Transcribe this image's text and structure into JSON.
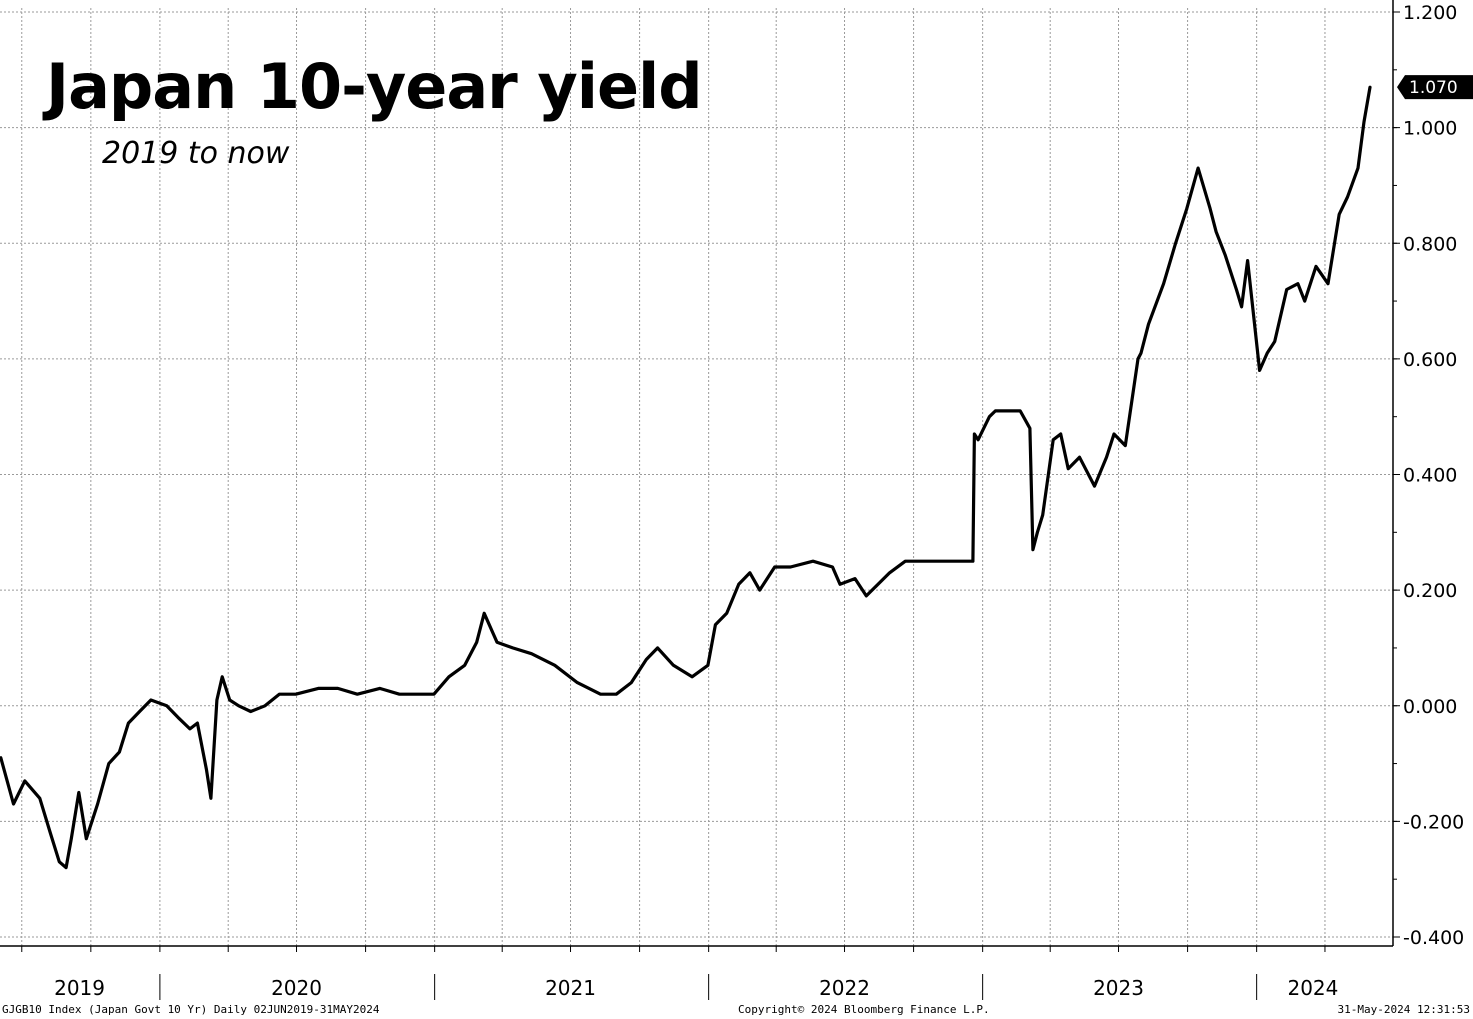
{
  "title": "Japan 10-year yield",
  "subtitle": "2019 to now",
  "footer": {
    "left": "GJGB10 Index (Japan Govt 10 Yr)  Daily 02JUN2019-31MAY2024",
    "center": "Copyright© 2024 Bloomberg Finance L.P.",
    "right": "31-May-2024 12:31:53"
  },
  "last_value_label": "1.070",
  "colors": {
    "line": "#000000",
    "grid": "#9a9a9a",
    "background": "#ffffff",
    "last_box": "#000000"
  },
  "chart_data": {
    "type": "line",
    "title": "Japan 10-year yield",
    "subtitle": "2019 to now",
    "xlabel": "",
    "ylabel": "",
    "ylim": [
      -0.4,
      1.2
    ],
    "xlim": [
      "2019-06-02",
      "2024-05-31"
    ],
    "yticks": [
      "1.200",
      "1.000",
      "0.800",
      "0.600",
      "0.400",
      "0.200",
      "0.000",
      "-0.200",
      "-0.400"
    ],
    "ytick_values": [
      1.2,
      1.0,
      0.8,
      0.6,
      0.4,
      0.2,
      0.0,
      -0.2,
      -0.4
    ],
    "year_labels": [
      "2019",
      "2020",
      "2021",
      "2022",
      "2023",
      "2024"
    ],
    "year_label_dates": [
      "2019-09-16",
      "2020-07-01",
      "2021-07-01",
      "2022-07-01",
      "2023-07-01",
      "2024-03-16"
    ],
    "year_separators": [
      "2020-01-01",
      "2021-01-01",
      "2022-01-01",
      "2023-01-01",
      "2024-01-01"
    ],
    "grid": true,
    "legend": "none",
    "series": [
      {
        "x": [
          "2019-06-03",
          "2019-06-20",
          "2019-07-05",
          "2019-07-25",
          "2019-08-08",
          "2019-08-20",
          "2019-08-29",
          "2019-09-05",
          "2019-09-15",
          "2019-09-25",
          "2019-10-10",
          "2019-10-25",
          "2019-11-08",
          "2019-11-20",
          "2019-12-05",
          "2019-12-20",
          "2020-01-10",
          "2020-01-25",
          "2020-02-10",
          "2020-02-20",
          "2020-03-03",
          "2020-03-09",
          "2020-03-17",
          "2020-03-24",
          "2020-04-03",
          "2020-04-15",
          "2020-05-01",
          "2020-05-20",
          "2020-06-08",
          "2020-06-30",
          "2020-07-30",
          "2020-08-25",
          "2020-09-20",
          "2020-10-20",
          "2020-11-15",
          "2020-12-10",
          "2020-12-31",
          "2021-01-20",
          "2021-02-10",
          "2021-02-26",
          "2021-03-08",
          "2021-03-25",
          "2021-04-15",
          "2021-05-10",
          "2021-06-10",
          "2021-07-10",
          "2021-08-10",
          "2021-08-31",
          "2021-09-20",
          "2021-10-10",
          "2021-10-25",
          "2021-11-15",
          "2021-12-10",
          "2021-12-31",
          "2022-01-10",
          "2022-01-25",
          "2022-02-10",
          "2022-02-25",
          "2022-03-10",
          "2022-03-30",
          "2022-04-20",
          "2022-05-20",
          "2022-06-15",
          "2022-06-25",
          "2022-07-15",
          "2022-07-30",
          "2022-08-30",
          "2022-09-20",
          "2022-10-20",
          "2022-11-20",
          "2022-12-19",
          "2022-12-21",
          "2022-12-26",
          "2023-01-10",
          "2023-01-18",
          "2023-01-26",
          "2023-02-20",
          "2023-03-05",
          "2023-03-09",
          "2023-03-15",
          "2023-03-22",
          "2023-04-05",
          "2023-04-15",
          "2023-04-25",
          "2023-05-10",
          "2023-05-30",
          "2023-06-15",
          "2023-06-25",
          "2023-07-10",
          "2023-07-27",
          "2023-07-31",
          "2023-08-10",
          "2023-08-30",
          "2023-09-15",
          "2023-09-30",
          "2023-10-15",
          "2023-10-31",
          "2023-11-08",
          "2023-11-20",
          "2023-12-05",
          "2023-12-12",
          "2023-12-20",
          "2024-01-05",
          "2024-01-15",
          "2024-01-25",
          "2024-02-10",
          "2024-02-25",
          "2024-03-05",
          "2024-03-20",
          "2024-04-05",
          "2024-04-20",
          "2024-05-01",
          "2024-05-15",
          "2024-05-23",
          "2024-05-31"
        ],
        "values": [
          -0.09,
          -0.17,
          -0.13,
          -0.16,
          -0.22,
          -0.27,
          -0.28,
          -0.23,
          -0.15,
          -0.23,
          -0.17,
          -0.1,
          -0.08,
          -0.03,
          -0.01,
          0.01,
          0.0,
          -0.02,
          -0.04,
          -0.03,
          -0.11,
          -0.16,
          0.01,
          0.05,
          0.01,
          0.0,
          -0.01,
          0.0,
          0.02,
          0.02,
          0.03,
          0.03,
          0.02,
          0.03,
          0.02,
          0.02,
          0.02,
          0.05,
          0.07,
          0.11,
          0.16,
          0.11,
          0.1,
          0.09,
          0.07,
          0.04,
          0.02,
          0.02,
          0.04,
          0.08,
          0.1,
          0.07,
          0.05,
          0.07,
          0.14,
          0.16,
          0.21,
          0.23,
          0.2,
          0.24,
          0.24,
          0.25,
          0.24,
          0.21,
          0.22,
          0.19,
          0.23,
          0.25,
          0.25,
          0.25,
          0.25,
          0.47,
          0.46,
          0.5,
          0.51,
          0.51,
          0.51,
          0.48,
          0.27,
          0.3,
          0.33,
          0.46,
          0.47,
          0.41,
          0.43,
          0.38,
          0.43,
          0.47,
          0.45,
          0.6,
          0.61,
          0.66,
          0.73,
          0.8,
          0.86,
          0.93,
          0.86,
          0.82,
          0.78,
          0.72,
          0.69,
          0.77,
          0.58,
          0.61,
          0.63,
          0.72,
          0.73,
          0.7,
          0.76,
          0.73,
          0.85,
          0.88,
          0.93,
          1.01,
          1.07
        ]
      }
    ]
  }
}
